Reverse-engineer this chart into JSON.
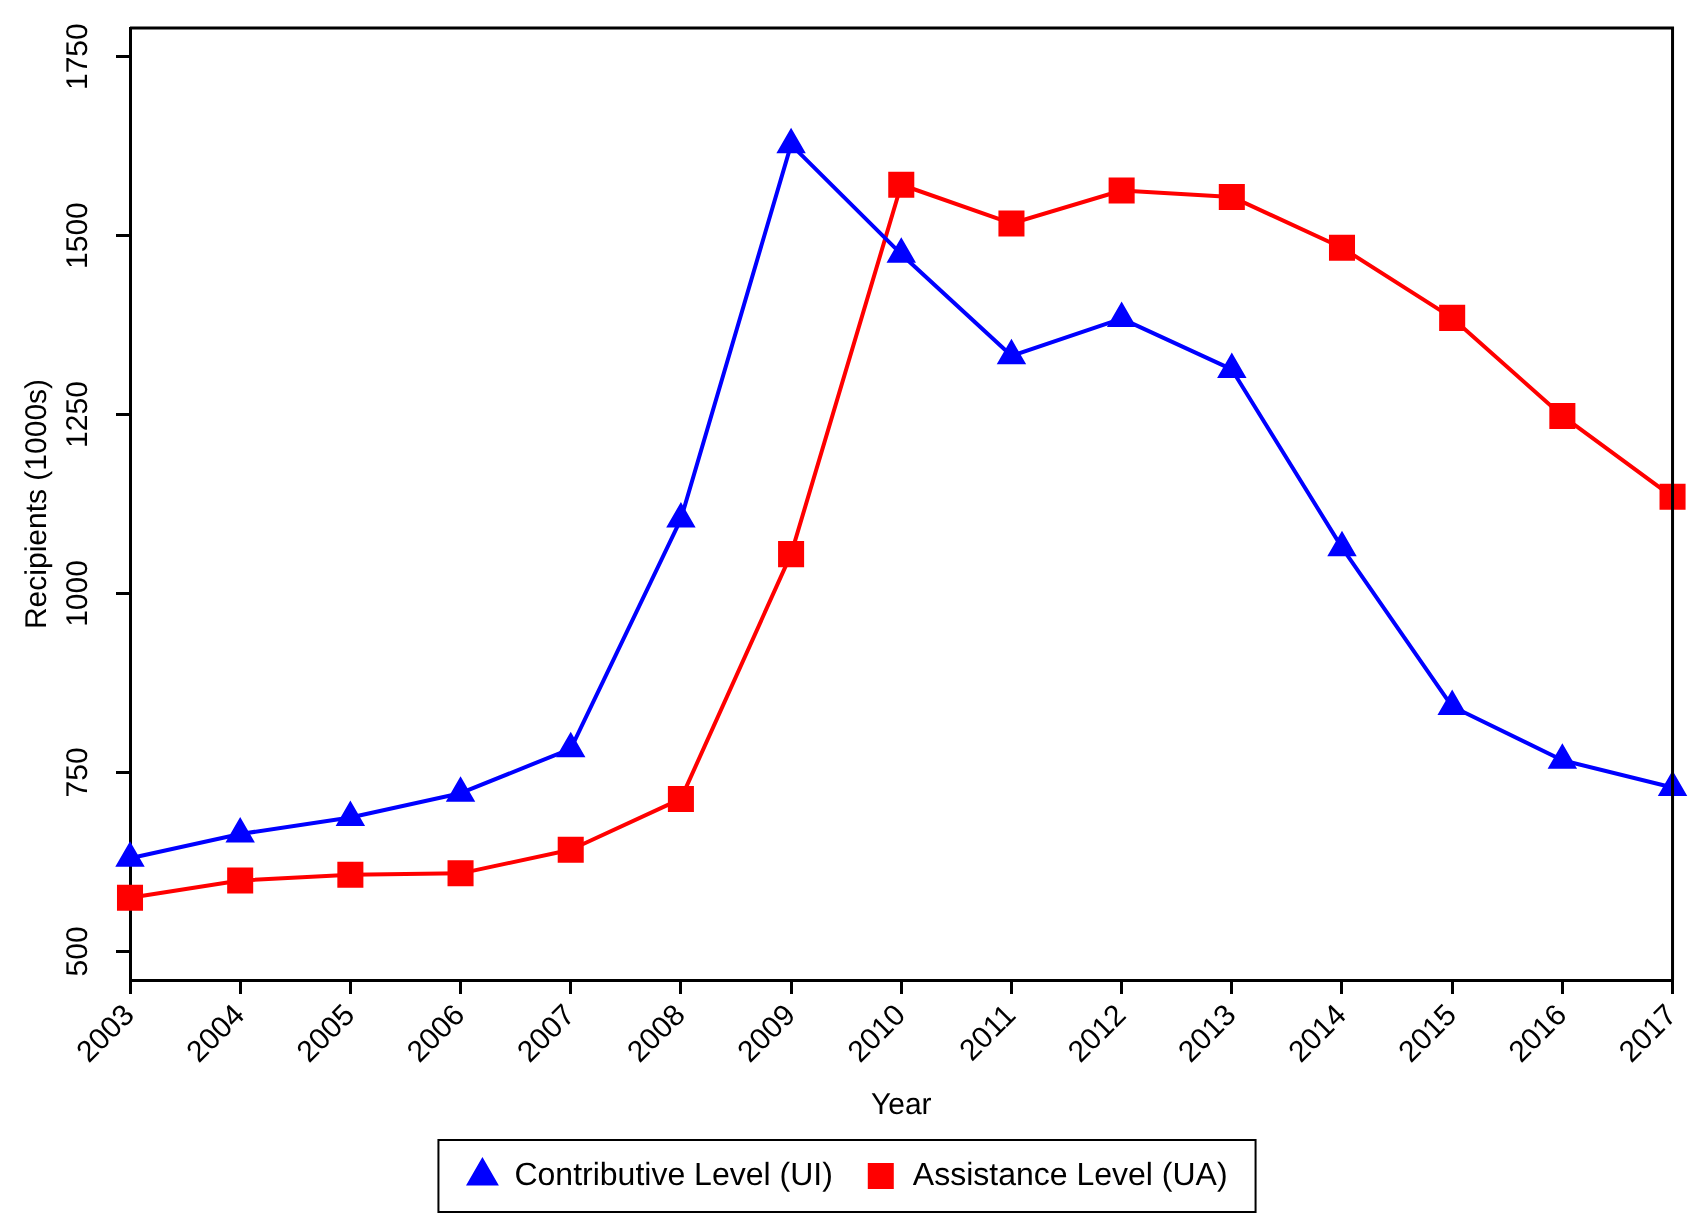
{
  "chart_data": {
    "type": "line",
    "xlabel": "Year",
    "ylabel": "Recipients (1000s)",
    "categories": [
      "2003",
      "2004",
      "2005",
      "2006",
      "2007",
      "2008",
      "2009",
      "2010",
      "2011",
      "2012",
      "2013",
      "2014",
      "2015",
      "2016",
      "2017"
    ],
    "series": [
      {
        "name": "Contributive Level (UI)",
        "color": "#0000ff",
        "marker": "triangle",
        "values": [
          630,
          664,
          687,
          721,
          783,
          1104,
          1627,
          1474,
          1332,
          1384,
          1313,
          1064,
          842,
          767,
          729
        ]
      },
      {
        "name": "Assistance Level (UA)",
        "color": "#ff0000",
        "marker": "square",
        "values": [
          575,
          599,
          607,
          609,
          642,
          713,
          1055,
          1571,
          1517,
          1563,
          1554,
          1483,
          1385,
          1248,
          1135
        ]
      }
    ],
    "ylim": [
      460,
      1790
    ],
    "yticks": [
      500,
      750,
      1000,
      1250,
      1500,
      1750
    ],
    "grid": false,
    "legend": "bottom",
    "line_style": "solid"
  }
}
